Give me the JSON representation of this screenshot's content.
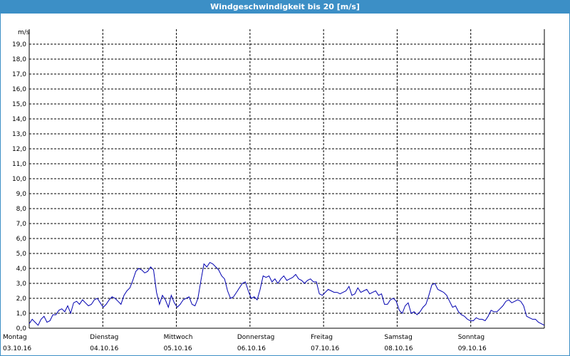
{
  "window": {
    "title": "Windgeschwindigkeit bis 20 [m/s]"
  },
  "chart_data": {
    "type": "line",
    "title": "Windgeschwindigkeit bis 20 [m/s]",
    "ylabel": "m/s",
    "xlabel": "",
    "ylim": [
      0,
      20
    ],
    "xlim": [
      0,
      7
    ],
    "grid": true,
    "yticks": [
      "0,0",
      "1,0",
      "2,0",
      "3,0",
      "4,0",
      "5,0",
      "6,0",
      "7,0",
      "8,0",
      "9,0",
      "10,0",
      "11,0",
      "12,0",
      "13,0",
      "14,0",
      "15,0",
      "16,0",
      "17,0",
      "18,0",
      "19,0"
    ],
    "days": [
      {
        "name": "Montag",
        "date": "03.10.16"
      },
      {
        "name": "Dienstag",
        "date": "04.10.16"
      },
      {
        "name": "Mittwoch",
        "date": "05.10.16"
      },
      {
        "name": "Donnerstag",
        "date": "06.10.16"
      },
      {
        "name": "Freitag",
        "date": "07.10.16"
      },
      {
        "name": "Samstag",
        "date": "08.10.16"
      },
      {
        "name": "Sonntag",
        "date": "09.10.16"
      }
    ],
    "series": [
      {
        "color": "#0000b0",
        "values": [
          0.3,
          0.6,
          0.4,
          0.2,
          0.6,
          0.8,
          0.4,
          0.5,
          0.9,
          0.9,
          1.2,
          1.3,
          1.1,
          1.5,
          1.0,
          1.7,
          1.8,
          1.6,
          1.9,
          1.7,
          1.5,
          1.6,
          1.9,
          2.0,
          1.7,
          1.4,
          1.6,
          1.9,
          2.1,
          2.0,
          1.8,
          1.6,
          2.2,
          2.5,
          2.7,
          3.2,
          3.8,
          4.0,
          3.9,
          3.7,
          3.8,
          4.1,
          3.9,
          2.4,
          1.6,
          2.2,
          1.9,
          1.4,
          2.2,
          1.7,
          1.4,
          1.6,
          1.9,
          2.0,
          2.1,
          1.6,
          1.5,
          2.0,
          3.2,
          4.3,
          4.1,
          4.4,
          4.3,
          4.1,
          3.9,
          3.5,
          3.3,
          2.5,
          2.0,
          2.1,
          2.4,
          2.7,
          3.0,
          3.1,
          2.5,
          2.0,
          2.1,
          1.9,
          2.6,
          3.5,
          3.4,
          3.5,
          3.1,
          3.3,
          3.0,
          3.3,
          3.5,
          3.2,
          3.3,
          3.4,
          3.6,
          3.3,
          3.2,
          3.0,
          3.2,
          3.3,
          3.1,
          3.1,
          2.3,
          2.2,
          2.4,
          2.6,
          2.5,
          2.4,
          2.4,
          2.3,
          2.4,
          2.5,
          2.8,
          2.2,
          2.3,
          2.7,
          2.4,
          2.5,
          2.6,
          2.3,
          2.4,
          2.5,
          2.2,
          2.3,
          1.6,
          1.6,
          1.9,
          2.0,
          1.8,
          1.2,
          1.0,
          1.5,
          1.7,
          1.0,
          1.1,
          0.9,
          1.1,
          1.4,
          1.6,
          2.2,
          2.9,
          3.0,
          2.6,
          2.5,
          2.4,
          2.2,
          1.8,
          1.4,
          1.5,
          1.1,
          0.9,
          0.8,
          0.6,
          0.5,
          0.5,
          0.7,
          0.6,
          0.6,
          0.5,
          0.8,
          1.2,
          1.1,
          1.1,
          1.3,
          1.5,
          1.8,
          1.9,
          1.7,
          1.8,
          1.9,
          1.8,
          1.5,
          0.8,
          0.7,
          0.6,
          0.6,
          0.4,
          0.3,
          0.2
        ]
      }
    ]
  }
}
